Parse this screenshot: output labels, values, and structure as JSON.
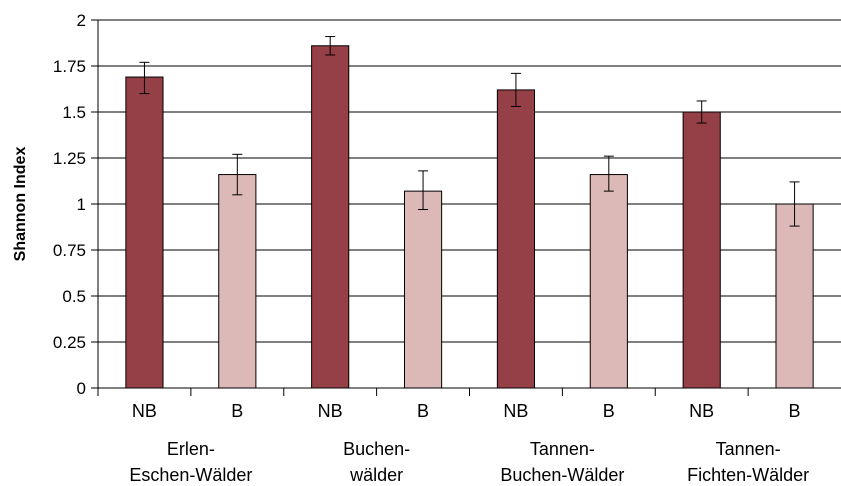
{
  "chart_data": {
    "type": "bar",
    "title": "",
    "xlabel": "",
    "ylabel": "Shannon Index",
    "ylim": [
      0,
      2
    ],
    "yticks": [
      "0",
      "0.25",
      "0.5",
      "0.75",
      "1",
      "1.25",
      "1.5",
      "1.75",
      "2"
    ],
    "yticks_values": [
      0,
      0.25,
      0.5,
      0.75,
      1,
      1.25,
      1.5,
      1.75,
      2
    ],
    "grid": true,
    "groups": [
      {
        "label_lines": [
          "Erlen-",
          "Eschen-Wälder"
        ],
        "bars": [
          {
            "label": "NB",
            "value": 1.69,
            "err_low": 1.6,
            "err_high": 1.77,
            "color": "#953F47"
          },
          {
            "label": "B",
            "value": 1.16,
            "err_low": 1.05,
            "err_high": 1.27,
            "color": "#DCB9B7"
          }
        ]
      },
      {
        "label_lines": [
          "Buchen-",
          "wälder"
        ],
        "bars": [
          {
            "label": "NB",
            "value": 1.86,
            "err_low": 1.81,
            "err_high": 1.91,
            "color": "#953F47"
          },
          {
            "label": "B",
            "value": 1.07,
            "err_low": 0.97,
            "err_high": 1.18,
            "color": "#DCB9B7"
          }
        ]
      },
      {
        "label_lines": [
          "Tannen-",
          "Buchen-Wälder"
        ],
        "bars": [
          {
            "label": "NB",
            "value": 1.62,
            "err_low": 1.53,
            "err_high": 1.71,
            "color": "#953F47"
          },
          {
            "label": "B",
            "value": 1.16,
            "err_low": 1.07,
            "err_high": 1.26,
            "color": "#DCB9B7"
          }
        ]
      },
      {
        "label_lines": [
          "Tannen-",
          "Fichten-Wälder"
        ],
        "bars": [
          {
            "label": "NB",
            "value": 1.5,
            "err_low": 1.44,
            "err_high": 1.56,
            "color": "#953F47"
          },
          {
            "label": "B",
            "value": 1.0,
            "err_low": 0.88,
            "err_high": 1.12,
            "color": "#DCB9B7"
          }
        ]
      }
    ]
  }
}
